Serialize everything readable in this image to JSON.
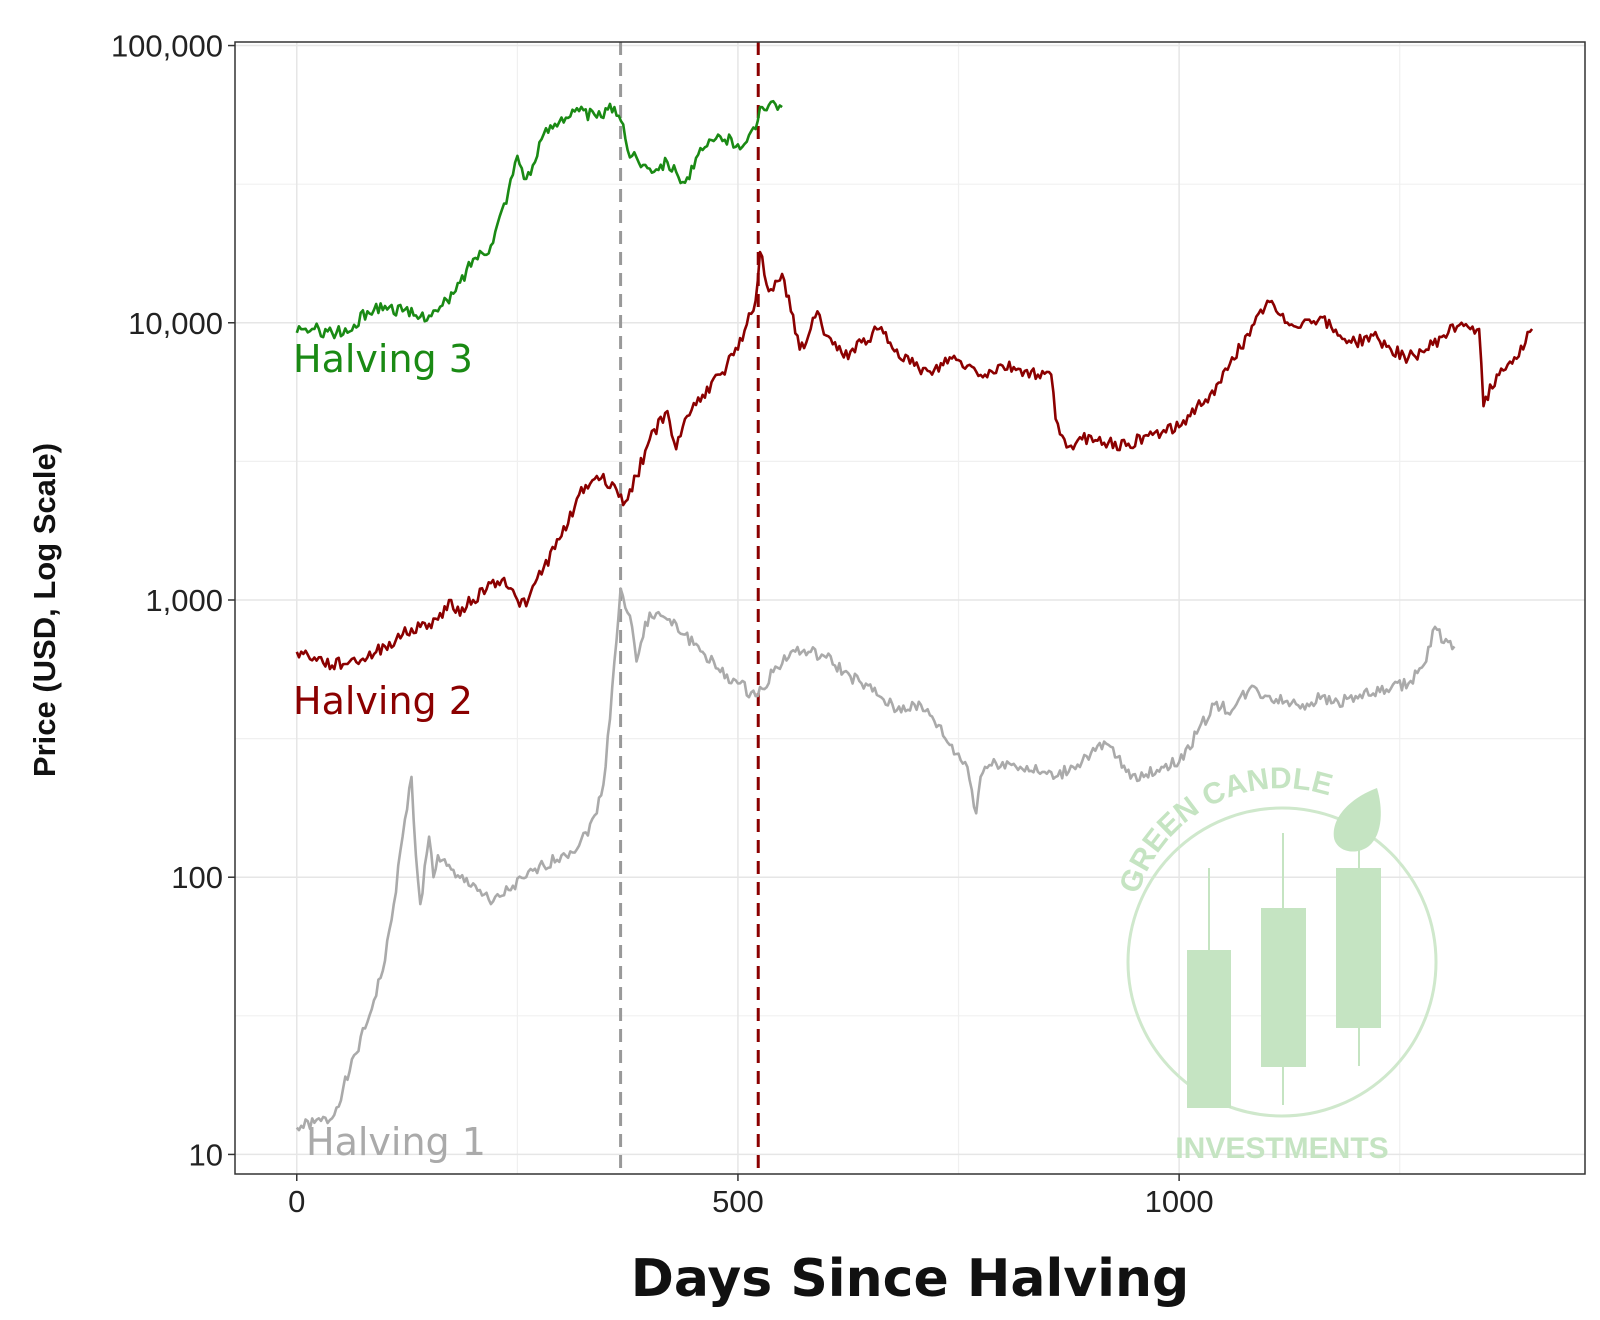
{
  "chart_data": {
    "type": "line",
    "title": "",
    "xlabel": "Days Since Halving",
    "ylabel": "Price (USD, Log Scale)",
    "y_scale": "log",
    "xlim": [
      -70,
      1460
    ],
    "ylim": [
      8.5,
      103000
    ],
    "grid": true,
    "x_ticks": [
      0,
      500,
      1000
    ],
    "x_tick_labels": [
      "0",
      "500",
      "1000"
    ],
    "y_ticks": [
      10,
      100,
      1000,
      10000,
      100000
    ],
    "y_tick_labels": [
      "10",
      "100",
      "1,000",
      "10,000",
      "100,000"
    ],
    "series": [
      {
        "name": "Halving 1",
        "color": "#aaaaaa",
        "x": [
          0,
          20,
          40,
          60,
          80,
          100,
          110,
          120,
          130,
          135,
          140,
          150,
          155,
          160,
          170,
          180,
          200,
          220,
          240,
          260,
          280,
          300,
          320,
          340,
          350,
          360,
          367,
          375,
          380,
          385,
          390,
          400,
          420,
          440,
          460,
          480,
          500,
          520,
          540,
          560,
          580,
          600,
          620,
          640,
          660,
          680,
          700,
          720,
          740,
          760,
          770,
          775,
          780,
          800,
          820,
          840,
          860,
          880,
          900,
          920,
          940,
          960,
          980,
          1000,
          1020,
          1040,
          1060,
          1080,
          1100,
          1120,
          1140,
          1160,
          1180,
          1200,
          1220,
          1240,
          1260,
          1280,
          1290,
          1300,
          1312
        ],
        "y": [
          12.5,
          13,
          13.5,
          20,
          30,
          50,
          80,
          140,
          230,
          120,
          80,
          140,
          100,
          120,
          110,
          100,
          95,
          80,
          90,
          100,
          110,
          120,
          130,
          170,
          250,
          600,
          1100,
          900,
          800,
          600,
          700,
          900,
          850,
          750,
          650,
          550,
          500,
          450,
          550,
          650,
          650,
          620,
          550,
          500,
          450,
          400,
          420,
          380,
          300,
          250,
          170,
          230,
          250,
          260,
          250,
          240,
          230,
          250,
          280,
          300,
          240,
          230,
          250,
          260,
          330,
          420,
          400,
          480,
          450,
          430,
          420,
          440,
          430,
          450,
          460,
          480,
          500,
          600,
          800,
          700,
          680
        ]
      },
      {
        "name": "Halving 2",
        "color": "#8b0000",
        "x": [
          0,
          20,
          40,
          60,
          80,
          100,
          120,
          140,
          160,
          175,
          180,
          200,
          220,
          235,
          240,
          250,
          260,
          270,
          300,
          320,
          340,
          360,
          370,
          385,
          400,
          420,
          430,
          440,
          460,
          480,
          500,
          520,
          525,
          535,
          550,
          560,
          570,
          580,
          590,
          600,
          620,
          640,
          660,
          680,
          700,
          720,
          740,
          760,
          780,
          800,
          820,
          840,
          855,
          860,
          870,
          880,
          890,
          900,
          920,
          940,
          960,
          980,
          1000,
          1020,
          1040,
          1060,
          1080,
          1100,
          1120,
          1140,
          1160,
          1180,
          1200,
          1220,
          1240,
          1260,
          1280,
          1300,
          1320,
          1340,
          1345,
          1360,
          1380,
          1400
        ],
        "y": [
          650,
          620,
          580,
          600,
          620,
          680,
          750,
          800,
          850,
          1000,
          900,
          1000,
          1150,
          1200,
          1100,
          1000,
          950,
          1150,
          1700,
          2400,
          2800,
          2600,
          2200,
          2800,
          3800,
          4800,
          3500,
          4500,
          5500,
          6500,
          8000,
          12000,
          18000,
          13000,
          15000,
          11000,
          8000,
          9000,
          11000,
          9000,
          7500,
          8500,
          9500,
          8000,
          7000,
          6500,
          7500,
          7000,
          6500,
          7000,
          6800,
          6500,
          6500,
          4500,
          3800,
          3500,
          3800,
          3900,
          3700,
          3600,
          3900,
          4000,
          4200,
          5000,
          5500,
          7500,
          9000,
          12000,
          10000,
          10000,
          10500,
          9000,
          8500,
          9000,
          8000,
          7500,
          8000,
          9000,
          10000,
          9500,
          5000,
          6500,
          7500,
          9500
        ]
      },
      {
        "name": "Halving 3",
        "color": "#1a8a14",
        "x": [
          0,
          20,
          40,
          60,
          80,
          100,
          120,
          140,
          160,
          180,
          200,
          220,
          240,
          250,
          260,
          270,
          280,
          300,
          320,
          340,
          360,
          370,
          375,
          380,
          400,
          420,
          430,
          440,
          460,
          480,
          500,
          510,
          520,
          525,
          540,
          550
        ],
        "y": [
          9200,
          9500,
          9200,
          9300,
          11000,
          11500,
          11000,
          10500,
          11000,
          13000,
          17000,
          19000,
          30000,
          40000,
          33000,
          38000,
          48000,
          55000,
          58000,
          55000,
          60000,
          52000,
          42000,
          40000,
          36000,
          38000,
          35000,
          32000,
          42000,
          47000,
          44000,
          45000,
          50000,
          60000,
          63000,
          60000
        ]
      }
    ],
    "series_labels": [
      "Halving 3",
      "Halving 2",
      "Halving 1"
    ],
    "vlines": [
      {
        "x": 367,
        "color": "#999999",
        "style": "dashed"
      },
      {
        "x": 523,
        "color": "#8b0000",
        "style": "dashed"
      }
    ],
    "watermark": {
      "top_text": "GREEN CANDLE",
      "bottom_text": "INVESTMENTS",
      "color": "#c5e4c2",
      "icon": "candlestick-leaf-logo"
    }
  }
}
